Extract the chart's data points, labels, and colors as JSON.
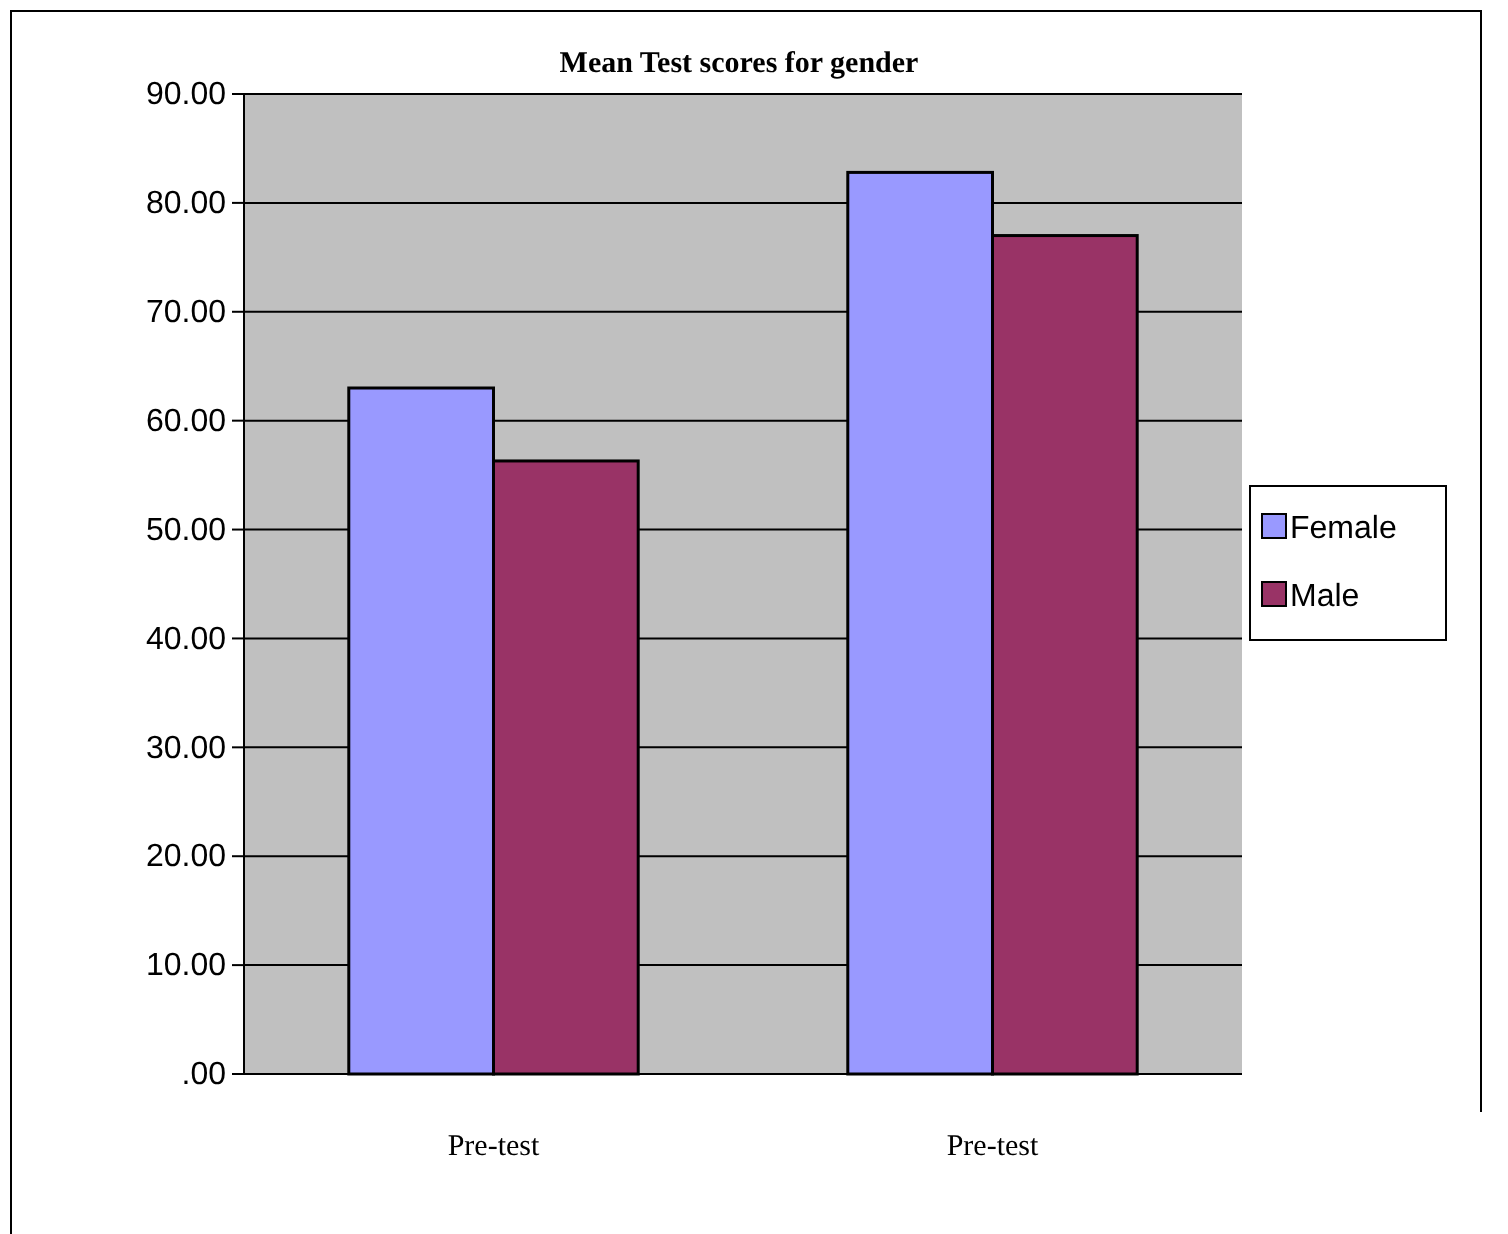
{
  "chart_data": {
    "type": "bar",
    "title": "Mean Test scores for gender",
    "categories": [
      "Pre-test",
      "Pre-test"
    ],
    "series": [
      {
        "name": "Female",
        "color": "#9999ff",
        "values": [
          63,
          82.8
        ]
      },
      {
        "name": "Male",
        "color": "#993366",
        "values": [
          56.3,
          77
        ]
      }
    ],
    "ylim": [
      0,
      90
    ],
    "yticks": [
      {
        "value": 0,
        "label": ".00"
      },
      {
        "value": 10,
        "label": "10.00"
      },
      {
        "value": 20,
        "label": "20.00"
      },
      {
        "value": 30,
        "label": "30.00"
      },
      {
        "value": 40,
        "label": "40.00"
      },
      {
        "value": 50,
        "label": "50.00"
      },
      {
        "value": 60,
        "label": "60.00"
      },
      {
        "value": 70,
        "label": "70.00"
      },
      {
        "value": 80,
        "label": "80.00"
      },
      {
        "value": 90,
        "label": "90.00"
      }
    ],
    "grid": "y",
    "legend": "right"
  }
}
